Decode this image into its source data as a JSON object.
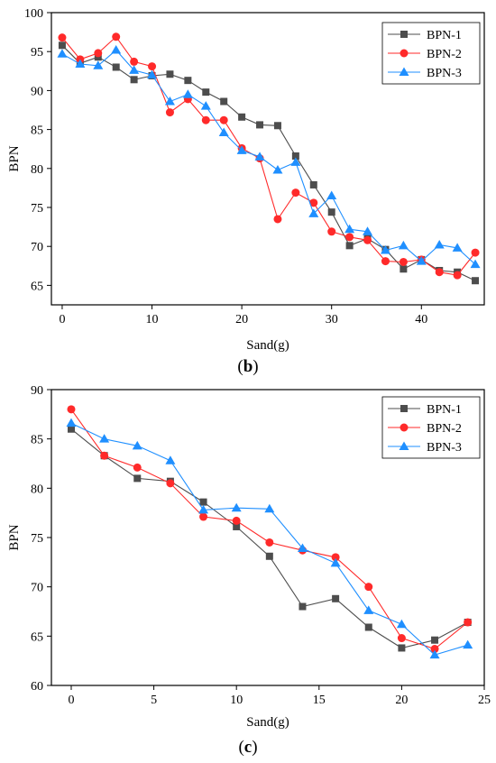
{
  "panels": [
    {
      "caption": {
        "open": "(",
        "letter": "b",
        "close": ")"
      }
    },
    {
      "caption": {
        "open": "(",
        "letter": "c",
        "close": ")"
      }
    }
  ],
  "colors": {
    "BPN-1": "#4d4d4d",
    "BPN-2": "#ff2a2a",
    "BPN-3": "#1f8fff",
    "axis": "#000000"
  },
  "chart_data": [
    {
      "type": "line",
      "xlabel": "Sand(g)",
      "ylabel": "BPN",
      "xlim": [
        -1.2,
        47
      ],
      "ylim": [
        62.5,
        100
      ],
      "xticks": [
        0,
        10,
        20,
        30,
        40
      ],
      "yticks": [
        65,
        70,
        75,
        80,
        85,
        90,
        95,
        100
      ],
      "grid": false,
      "legend_position": "top-right",
      "x": [
        0,
        2,
        4,
        6,
        8,
        10,
        12,
        14,
        16,
        18,
        20,
        22,
        24,
        26,
        28,
        30,
        32,
        34,
        36,
        38,
        40,
        42,
        44,
        46
      ],
      "series": [
        {
          "name": "BPN-1",
          "marker": "square",
          "values": [
            95.8,
            93.5,
            94.3,
            93.0,
            91.4,
            91.9,
            92.1,
            91.3,
            89.8,
            88.6,
            86.6,
            85.6,
            85.5,
            81.6,
            77.9,
            74.4,
            70.1,
            71.0,
            69.6,
            67.1,
            68.3,
            66.9,
            66.7,
            65.6
          ]
        },
        {
          "name": "BPN-2",
          "marker": "circle",
          "values": [
            96.8,
            94.0,
            94.8,
            96.9,
            93.7,
            93.1,
            87.2,
            88.9,
            86.2,
            86.2,
            82.6,
            81.3,
            73.5,
            76.9,
            75.6,
            71.9,
            71.2,
            70.8,
            68.1,
            68.0,
            68.3,
            66.7,
            66.3,
            69.2
          ]
        },
        {
          "name": "BPN-3",
          "marker": "triangle",
          "values": [
            94.7,
            93.4,
            93.2,
            95.2,
            92.6,
            92.0,
            88.6,
            89.5,
            88.0,
            84.6,
            82.3,
            81.5,
            79.8,
            80.8,
            74.2,
            76.5,
            72.2,
            71.9,
            69.5,
            70.1,
            68.1,
            70.2,
            69.8,
            67.7
          ]
        }
      ]
    },
    {
      "type": "line",
      "xlabel": "Sand(g)",
      "ylabel": "BPN",
      "xlim": [
        -1.2,
        25
      ],
      "ylim": [
        60,
        90
      ],
      "xticks": [
        0,
        5,
        10,
        15,
        20,
        25
      ],
      "yticks": [
        60,
        65,
        70,
        75,
        80,
        85,
        90
      ],
      "grid": false,
      "legend_position": "top-right",
      "x": [
        0,
        2,
        4,
        6,
        8,
        10,
        12,
        14,
        16,
        18,
        20,
        22,
        24
      ],
      "series": [
        {
          "name": "BPN-1",
          "marker": "square",
          "values": [
            86.0,
            83.3,
            81.0,
            80.7,
            78.6,
            76.1,
            73.1,
            68.0,
            68.8,
            65.9,
            63.8,
            64.6,
            66.4
          ]
        },
        {
          "name": "BPN-2",
          "marker": "circle",
          "values": [
            88.0,
            83.3,
            82.1,
            80.5,
            77.1,
            76.7,
            74.5,
            73.7,
            73.0,
            70.0,
            64.8,
            63.7,
            66.4
          ]
        },
        {
          "name": "BPN-3",
          "marker": "triangle",
          "values": [
            86.6,
            85.0,
            84.3,
            82.8,
            77.8,
            78.0,
            77.9,
            73.9,
            72.4,
            67.6,
            66.2,
            63.1,
            64.1
          ]
        }
      ]
    }
  ]
}
